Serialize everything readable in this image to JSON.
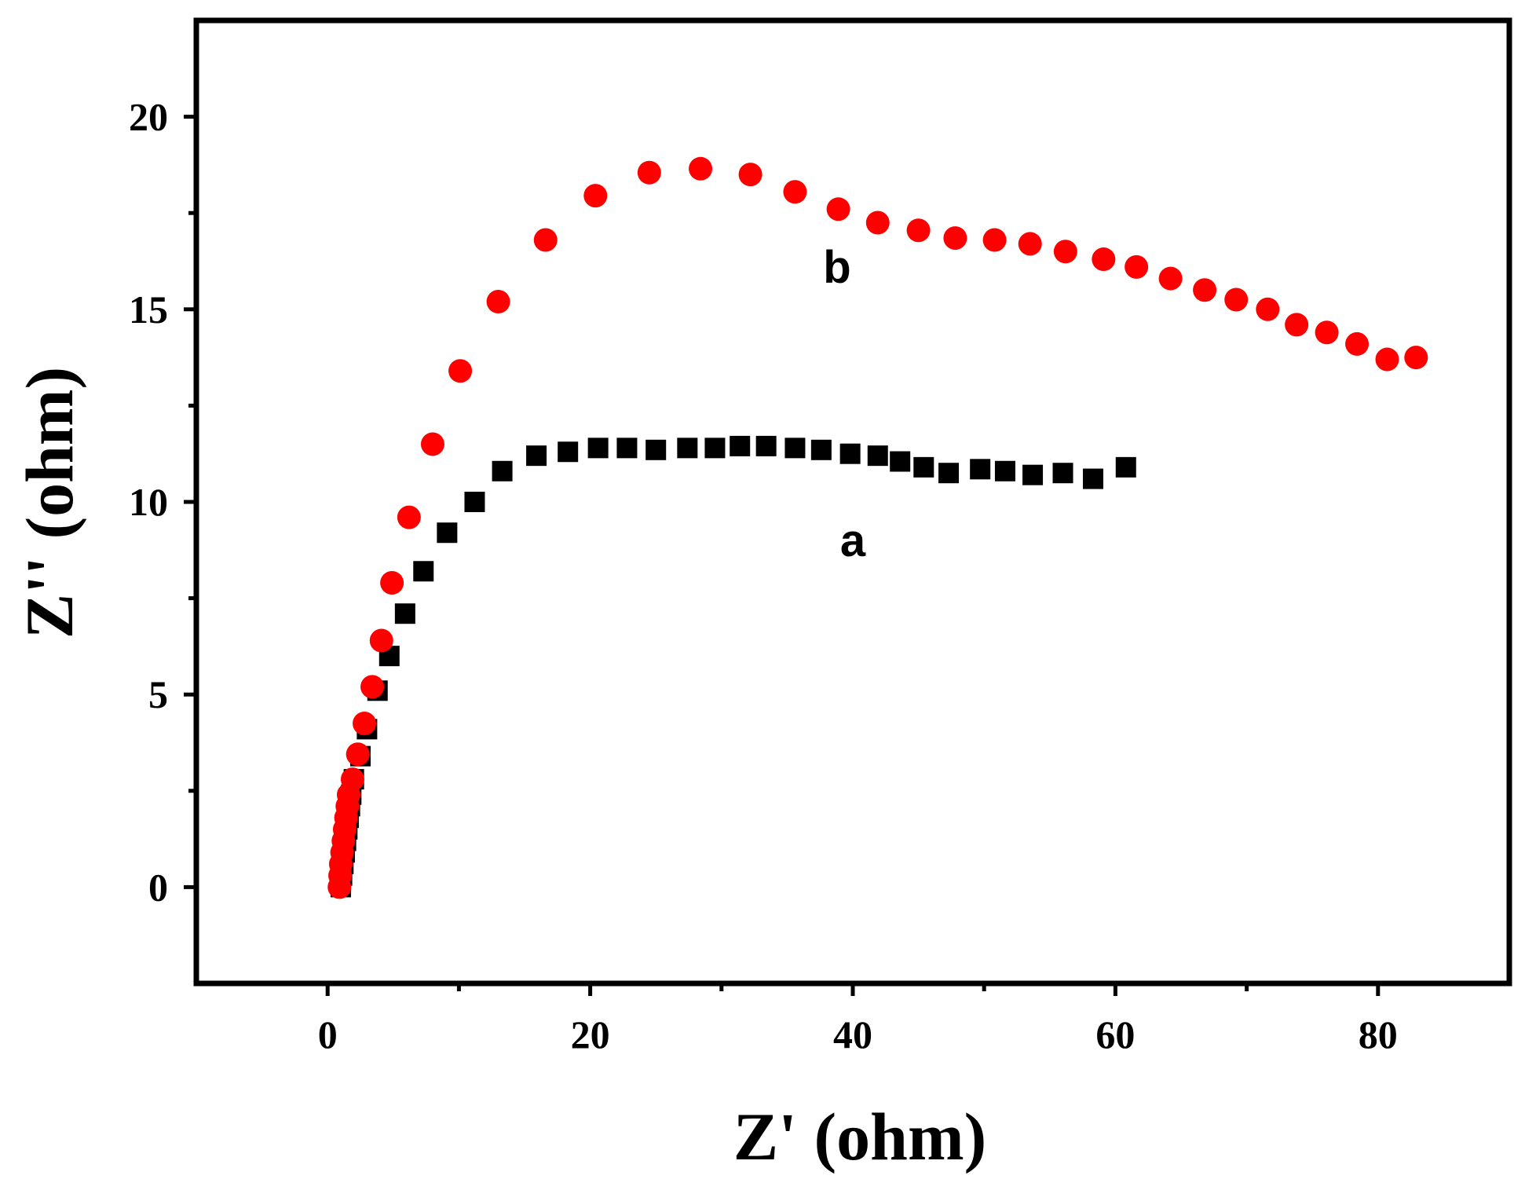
{
  "chart_data": {
    "type": "scatter",
    "title": "",
    "xlabel": "Z' (ohm)",
    "ylabel": "Z'' (ohm)",
    "xlim": [
      -10,
      90
    ],
    "ylim": [
      -2.5,
      22.5
    ],
    "xticks": [
      0,
      20,
      40,
      60,
      80
    ],
    "yticks": [
      0,
      5,
      10,
      15,
      20
    ],
    "xtick_labels": [
      "0",
      "20",
      "40",
      "60",
      "80"
    ],
    "ytick_labels": [
      "0",
      "5",
      "10",
      "15",
      "20"
    ],
    "grid": false,
    "series": [
      {
        "name": "a",
        "marker": "square",
        "color": "#000000",
        "label_position": [
          40,
          9.0
        ],
        "points": [
          [
            1.0,
            0.0
          ],
          [
            1.1,
            0.3
          ],
          [
            1.2,
            0.6
          ],
          [
            1.3,
            0.9
          ],
          [
            1.4,
            1.2
          ],
          [
            1.5,
            1.5
          ],
          [
            1.6,
            1.8
          ],
          [
            1.7,
            2.1
          ],
          [
            1.8,
            2.4
          ],
          [
            2.0,
            2.8
          ],
          [
            2.5,
            3.4
          ],
          [
            3.0,
            4.1
          ],
          [
            3.8,
            5.1
          ],
          [
            4.7,
            6.0
          ],
          [
            5.9,
            7.1
          ],
          [
            7.3,
            8.2
          ],
          [
            9.1,
            9.2
          ],
          [
            11.2,
            10.0
          ],
          [
            13.3,
            10.8
          ],
          [
            15.9,
            11.2
          ],
          [
            18.3,
            11.3
          ],
          [
            20.6,
            11.4
          ],
          [
            22.8,
            11.4
          ],
          [
            25.0,
            11.35
          ],
          [
            27.4,
            11.4
          ],
          [
            29.5,
            11.4
          ],
          [
            31.4,
            11.45
          ],
          [
            33.4,
            11.45
          ],
          [
            35.6,
            11.4
          ],
          [
            37.6,
            11.35
          ],
          [
            39.8,
            11.25
          ],
          [
            41.9,
            11.2
          ],
          [
            43.6,
            11.05
          ],
          [
            45.4,
            10.9
          ],
          [
            47.3,
            10.75
          ],
          [
            49.7,
            10.85
          ],
          [
            51.6,
            10.8
          ],
          [
            53.7,
            10.7
          ],
          [
            56.0,
            10.75
          ],
          [
            58.3,
            10.6
          ],
          [
            60.8,
            10.9
          ]
        ]
      },
      {
        "name": "b",
        "marker": "circle",
        "color": "#ff0000",
        "label_position": [
          38.8,
          16.1
        ],
        "points": [
          [
            0.9,
            0.0
          ],
          [
            0.95,
            0.3
          ],
          [
            1.0,
            0.6
          ],
          [
            1.1,
            0.9
          ],
          [
            1.2,
            1.2
          ],
          [
            1.3,
            1.5
          ],
          [
            1.4,
            1.8
          ],
          [
            1.5,
            2.1
          ],
          [
            1.6,
            2.4
          ],
          [
            1.9,
            2.8
          ],
          [
            2.3,
            3.45
          ],
          [
            2.8,
            4.25
          ],
          [
            3.4,
            5.2
          ],
          [
            4.1,
            6.4
          ],
          [
            4.9,
            7.9
          ],
          [
            6.2,
            9.6
          ],
          [
            8.0,
            11.5
          ],
          [
            10.1,
            13.4
          ],
          [
            13.0,
            15.2
          ],
          [
            16.6,
            16.8
          ],
          [
            20.4,
            17.95
          ],
          [
            24.5,
            18.55
          ],
          [
            28.4,
            18.65
          ],
          [
            32.2,
            18.5
          ],
          [
            35.6,
            18.05
          ],
          [
            38.9,
            17.6
          ],
          [
            41.9,
            17.25
          ],
          [
            45.0,
            17.05
          ],
          [
            47.8,
            16.85
          ],
          [
            50.8,
            16.8
          ],
          [
            53.5,
            16.7
          ],
          [
            56.2,
            16.5
          ],
          [
            59.1,
            16.3
          ],
          [
            61.6,
            16.1
          ],
          [
            64.2,
            15.8
          ],
          [
            66.8,
            15.5
          ],
          [
            69.2,
            15.25
          ],
          [
            71.6,
            15.0
          ],
          [
            73.8,
            14.6
          ],
          [
            76.1,
            14.4
          ],
          [
            78.4,
            14.1
          ],
          [
            80.7,
            13.7
          ],
          [
            82.9,
            13.75
          ]
        ]
      }
    ]
  }
}
